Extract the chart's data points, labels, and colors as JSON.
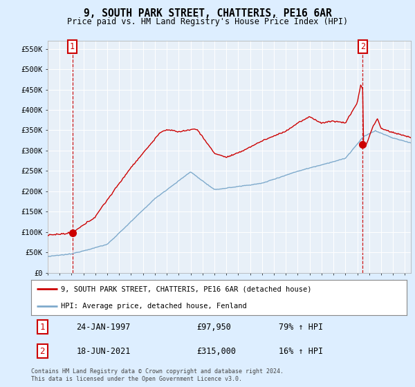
{
  "title": "9, SOUTH PARK STREET, CHATTERIS, PE16 6AR",
  "subtitle": "Price paid vs. HM Land Registry's House Price Index (HPI)",
  "ylabel_ticks": [
    "£0",
    "£50K",
    "£100K",
    "£150K",
    "£200K",
    "£250K",
    "£300K",
    "£350K",
    "£400K",
    "£450K",
    "£500K",
    "£550K"
  ],
  "ylim": [
    0,
    570000
  ],
  "ytick_vals": [
    0,
    50000,
    100000,
    150000,
    200000,
    250000,
    300000,
    350000,
    400000,
    450000,
    500000,
    550000
  ],
  "xlim_start": 1995.0,
  "xlim_end": 2025.5,
  "legend_line1": "9, SOUTH PARK STREET, CHATTERIS, PE16 6AR (detached house)",
  "legend_line2": "HPI: Average price, detached house, Fenland",
  "sale1_label": "1",
  "sale1_date": "24-JAN-1997",
  "sale1_price": "£97,950",
  "sale1_hpi": "79% ↑ HPI",
  "sale1_x": 1997.07,
  "sale1_y": 97950,
  "sale2_label": "2",
  "sale2_date": "18-JUN-2021",
  "sale2_price": "£315,000",
  "sale2_hpi": "16% ↑ HPI",
  "sale2_x": 2021.46,
  "sale2_y": 315000,
  "red_color": "#cc0000",
  "blue_color": "#7eaacc",
  "bg_color": "#ddeeff",
  "plot_bg": "#e8f0f8",
  "footer": "Contains HM Land Registry data © Crown copyright and database right 2024.\nThis data is licensed under the Open Government Licence v3.0."
}
